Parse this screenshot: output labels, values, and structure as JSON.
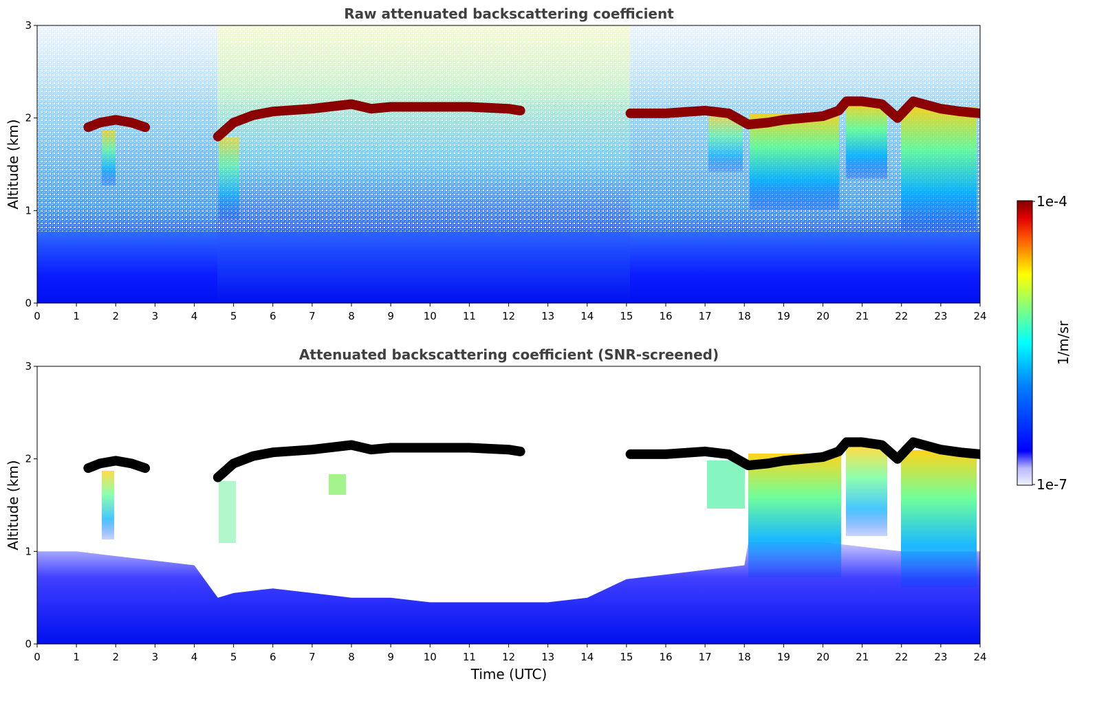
{
  "chart_data": [
    {
      "type": "heatmap",
      "title": "Raw attenuated backscattering coefficient",
      "xlabel": "",
      "ylabel": "Altitude (km)",
      "xlim": [
        0,
        24
      ],
      "ylim": [
        0,
        3
      ],
      "xticks": [
        "0",
        "1",
        "2",
        "3",
        "4",
        "5",
        "6",
        "7",
        "8",
        "9",
        "10",
        "11",
        "12",
        "13",
        "14",
        "15",
        "16",
        "17",
        "18",
        "19",
        "20",
        "21",
        "22",
        "23",
        "24"
      ],
      "yticks": [
        "0",
        "1",
        "2",
        "3"
      ],
      "layer_top_km": [
        [
          1.3,
          1.9
        ],
        [
          1.6,
          1.95
        ],
        [
          2.0,
          1.98
        ],
        [
          2.4,
          1.95
        ],
        [
          2.75,
          1.9
        ],
        [
          4.6,
          1.8
        ],
        [
          5.0,
          1.95
        ],
        [
          5.5,
          2.03
        ],
        [
          6.0,
          2.07
        ],
        [
          7.0,
          2.1
        ],
        [
          8.0,
          2.15
        ],
        [
          8.5,
          2.1
        ],
        [
          9.0,
          2.12
        ],
        [
          10.0,
          2.12
        ],
        [
          11.0,
          2.12
        ],
        [
          12.0,
          2.1
        ],
        [
          12.3,
          2.08
        ],
        [
          15.1,
          2.05
        ],
        [
          16.0,
          2.05
        ],
        [
          17.0,
          2.08
        ],
        [
          17.6,
          2.05
        ],
        [
          18.1,
          1.93
        ],
        [
          18.6,
          1.95
        ],
        [
          19.0,
          1.98
        ],
        [
          20.0,
          2.02
        ],
        [
          20.4,
          2.08
        ],
        [
          20.6,
          2.18
        ],
        [
          21.0,
          2.18
        ],
        [
          21.5,
          2.15
        ],
        [
          21.9,
          2.0
        ],
        [
          22.3,
          2.18
        ],
        [
          23.0,
          2.1
        ],
        [
          23.5,
          2.07
        ],
        [
          24.0,
          2.05
        ]
      ],
      "colorbar": {
        "label": "1/m/sr",
        "min_label": "1e-7",
        "max_label": "1e-4",
        "colormap": "jet"
      }
    },
    {
      "type": "heatmap",
      "title": "Attenuated backscattering coefficient (SNR-screened)",
      "xlabel": "Time (UTC)",
      "ylabel": "Altitude (km)",
      "xlim": [
        0,
        24
      ],
      "ylim": [
        0,
        3
      ],
      "xticks": [
        "0",
        "1",
        "2",
        "3",
        "4",
        "5",
        "6",
        "7",
        "8",
        "9",
        "10",
        "11",
        "12",
        "13",
        "14",
        "15",
        "16",
        "17",
        "18",
        "19",
        "20",
        "21",
        "22",
        "23",
        "24"
      ],
      "yticks": [
        "0",
        "1",
        "2",
        "3"
      ],
      "valid_signal_top_km": [
        [
          0,
          1.0
        ],
        [
          1,
          1.0
        ],
        [
          2,
          0.95
        ],
        [
          3,
          0.9
        ],
        [
          4,
          0.85
        ],
        [
          4.6,
          0.5
        ],
        [
          5,
          0.55
        ],
        [
          6,
          0.6
        ],
        [
          7,
          0.55
        ],
        [
          8,
          0.5
        ],
        [
          9,
          0.5
        ],
        [
          10,
          0.45
        ],
        [
          11,
          0.45
        ],
        [
          12,
          0.45
        ],
        [
          13,
          0.45
        ],
        [
          14,
          0.5
        ],
        [
          15,
          0.7
        ],
        [
          16,
          0.75
        ],
        [
          17,
          0.8
        ],
        [
          18,
          0.85
        ],
        [
          18.1,
          1.1
        ],
        [
          20,
          1.1
        ],
        [
          22,
          1.0
        ],
        [
          24,
          1.0
        ]
      ]
    }
  ],
  "colors": {
    "layer_raw": "#8b0000",
    "layer_screened": "#000000",
    "title_text": "#404040"
  }
}
